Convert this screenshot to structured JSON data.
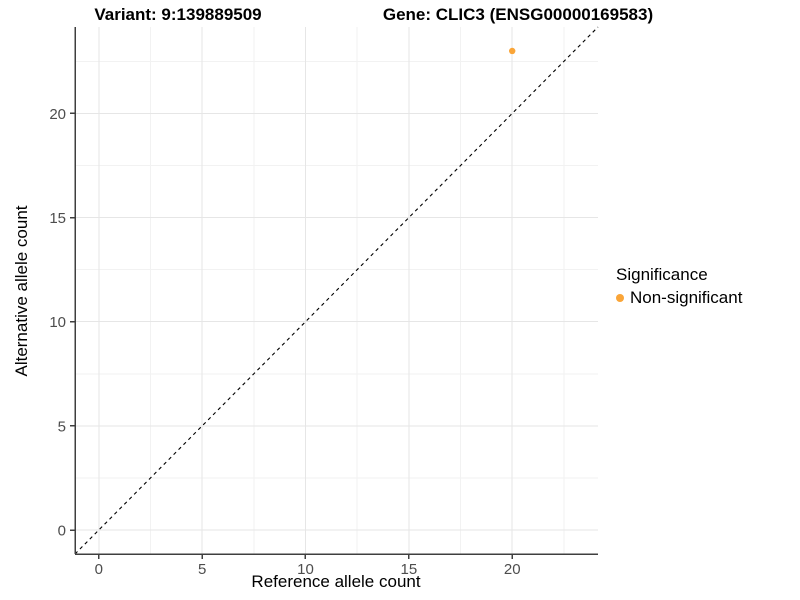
{
  "header": {
    "variant_title": "Variant: 9:139889509",
    "gene_title": "Gene: CLIC3 (ENSG00000169583)"
  },
  "chart_data": {
    "type": "scatter",
    "titles": {
      "left": "Variant: 9:139889509",
      "right": "Gene: CLIC3 (ENSG00000169583)"
    },
    "xlabel": "Reference allele count",
    "ylabel": "Alternative allele count",
    "xlim": [
      -1.15,
      24.15
    ],
    "ylim": [
      -1.15,
      24.15
    ],
    "x_major_ticks": [
      0,
      5,
      10,
      15,
      20
    ],
    "y_major_ticks": [
      0,
      5,
      10,
      15,
      20
    ],
    "x_minor_ticks": [
      2.5,
      7.5,
      12.5,
      17.5,
      22.5
    ],
    "y_minor_ticks": [
      2.5,
      7.5,
      12.5,
      17.5,
      22.5
    ],
    "grid": true,
    "reference_line": {
      "type": "abline",
      "slope": 1,
      "intercept": 0,
      "style": "dashed",
      "color": "#000000"
    },
    "series": [
      {
        "name": "Non-significant",
        "color": "#FAA538",
        "points": [
          {
            "x": 20,
            "y": 23
          }
        ]
      }
    ],
    "legend": {
      "title": "Significance",
      "position": "right",
      "entries": [
        {
          "label": "Non-significant",
          "color": "#FAA538"
        }
      ]
    }
  },
  "colors": {
    "background": "#ffffff",
    "grid_major": "#e6e6e6",
    "grid_minor": "#f2f2f2",
    "axis_line": "#3f3f3f",
    "tick_mark": "#3f3f3f",
    "tick_label": "#4d4d4d",
    "point": "#FAA538",
    "dashed_line": "#000000"
  }
}
